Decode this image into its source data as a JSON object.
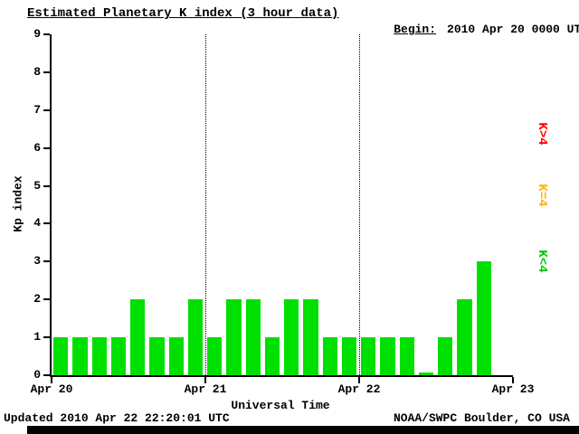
{
  "header": {
    "title": "Estimated Planetary K index (3 hour data)",
    "begin_label": "Begin:",
    "begin_value": "2010 Apr 20 0000 UTC"
  },
  "chart_data": {
    "type": "bar",
    "title": "Estimated Planetary K index (3 hour data)",
    "xlabel": "Universal Time",
    "ylabel": "Kp index",
    "ylim": [
      0,
      9
    ],
    "y_ticks": [
      0,
      1,
      2,
      3,
      4,
      5,
      6,
      7,
      8,
      9
    ],
    "x_tick_labels": [
      "Apr 20",
      "Apr 21",
      "Apr 22",
      "Apr 23"
    ],
    "x_tick_hours": [
      0,
      24,
      48,
      72
    ],
    "x_range_hours": [
      0,
      72
    ],
    "interval_hours": 3,
    "values": [
      1,
      1,
      1,
      1,
      2,
      1,
      1,
      2,
      1,
      2,
      2,
      1,
      2,
      2,
      1,
      1,
      1,
      1,
      1,
      0,
      1,
      2,
      3
    ],
    "bar_color": "#00e000",
    "dotted_gridline_hours": [
      24,
      48
    ],
    "grid": "dotted-day-lines",
    "legend_position": "right",
    "legend": [
      {
        "label": "K>4",
        "color": "#ff0000"
      },
      {
        "label": "K=4",
        "color": "#ffb400"
      },
      {
        "label": "K<4",
        "color": "#00c800"
      }
    ]
  },
  "footer": {
    "updated": "Updated 2010 Apr 22 22:20:01 UTC",
    "credit": "NOAA/SWPC Boulder, CO USA"
  }
}
